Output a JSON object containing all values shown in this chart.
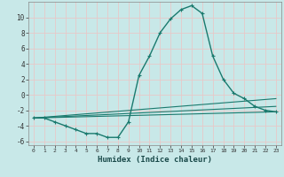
{
  "xlabel": "Humidex (Indice chaleur)",
  "bg_color": "#c8e8e8",
  "grid_color": "#e8c8c8",
  "line_color": "#1a7a6e",
  "xlim": [
    -0.5,
    23.5
  ],
  "ylim": [
    -6.5,
    12
  ],
  "yticks": [
    -6,
    -4,
    -2,
    0,
    2,
    4,
    6,
    8,
    10
  ],
  "xticks": [
    0,
    1,
    2,
    3,
    4,
    5,
    6,
    7,
    8,
    9,
    10,
    11,
    12,
    13,
    14,
    15,
    16,
    17,
    18,
    19,
    20,
    21,
    22,
    23
  ],
  "series_main": {
    "x": [
      0,
      1,
      2,
      3,
      4,
      5,
      6,
      7,
      8,
      9,
      10,
      11,
      12,
      13,
      14,
      15,
      16,
      17,
      18,
      19,
      20,
      21,
      22,
      23
    ],
    "y": [
      -3,
      -3,
      -3.5,
      -4,
      -4.5,
      -5,
      -5,
      -5.5,
      -5.5,
      -3.5,
      2.5,
      5,
      8,
      9.8,
      11,
      11.5,
      10.5,
      5,
      2,
      0.2,
      -0.5,
      -1.5,
      -2,
      -2.2
    ]
  },
  "series_lines": [
    {
      "x": [
        0,
        23
      ],
      "y": [
        -3.0,
        -2.2
      ]
    },
    {
      "x": [
        0,
        23
      ],
      "y": [
        -3.0,
        -1.5
      ]
    },
    {
      "x": [
        0,
        23
      ],
      "y": [
        -3.0,
        -0.5
      ]
    }
  ]
}
